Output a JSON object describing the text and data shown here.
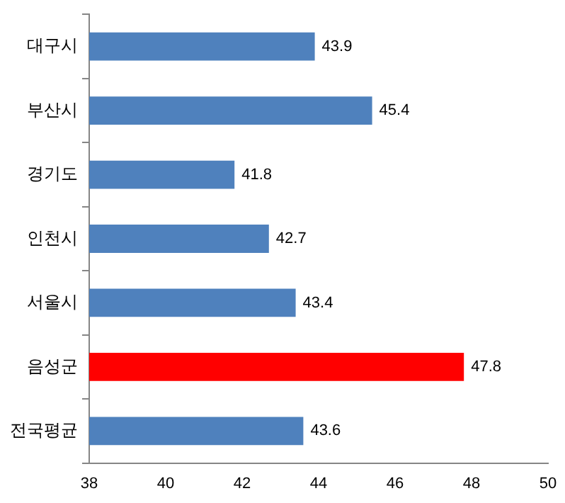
{
  "chart_data": {
    "type": "bar",
    "orientation": "horizontal",
    "categories": [
      "대구시",
      "부산시",
      "경기도",
      "인천시",
      "서울시",
      "음성군",
      "전국평균"
    ],
    "values": [
      43.9,
      45.4,
      41.8,
      42.7,
      43.4,
      47.8,
      43.6
    ],
    "colors": [
      "#4f81bd",
      "#4f81bd",
      "#4f81bd",
      "#4f81bd",
      "#4f81bd",
      "#ff0000",
      "#4f81bd"
    ],
    "xlim": [
      38,
      50
    ],
    "xticks": [
      38,
      40,
      42,
      44,
      46,
      48,
      50
    ],
    "grid": false,
    "legend": false,
    "data_labels": true
  }
}
